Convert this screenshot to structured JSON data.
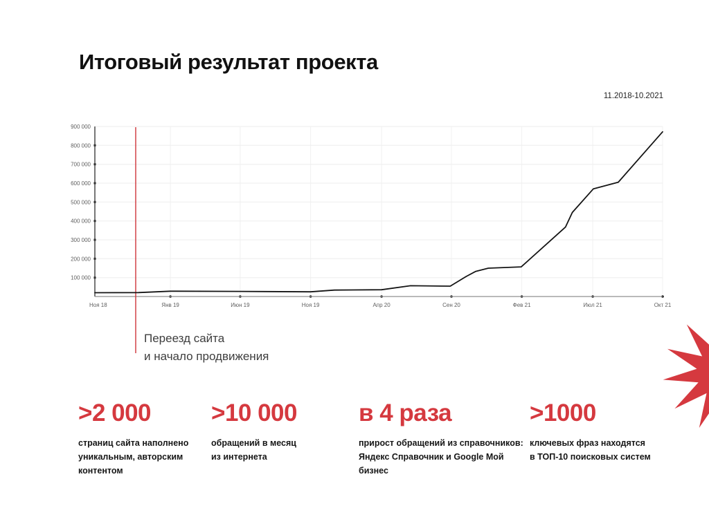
{
  "title": "Итоговый результат проекта",
  "period": "11.2018-10.2021",
  "accent_color": "#d5393f",
  "annotation": {
    "text": "Переезд сайта\nи начало продвижения",
    "marker_color": "#d0393e"
  },
  "chart_data": {
    "type": "line",
    "title": "Итоговый результат проекта",
    "xlabel": "",
    "ylabel": "",
    "ylim": [
      0,
      900000
    ],
    "grid": true,
    "legend": "none",
    "line_color": "#141414",
    "x_tick_labels": [
      "Ноя 18",
      "Янв 19",
      "Июн 19",
      "Ноя 19",
      "Апр 20",
      "Сен 20",
      "Фев 21",
      "Июл 21",
      "Окт 21"
    ],
    "x_tick_pos": [
      0,
      0.133,
      0.256,
      0.38,
      0.505,
      0.628,
      0.752,
      0.877,
      1.0
    ],
    "y_tick_values": [
      100000,
      200000,
      300000,
      400000,
      500000,
      600000,
      700000,
      800000,
      900000
    ],
    "y_tick_labels": [
      "100 000",
      "200 000",
      "300 000",
      "400 000",
      "500 000",
      "600 000",
      "700 000",
      "800 000",
      "900 000"
    ],
    "marker_x": 0.072,
    "points": [
      [
        0.0,
        20000
      ],
      [
        0.077,
        21000
      ],
      [
        0.133,
        28000
      ],
      [
        0.256,
        27000
      ],
      [
        0.38,
        25000
      ],
      [
        0.422,
        34000
      ],
      [
        0.505,
        36000
      ],
      [
        0.556,
        57000
      ],
      [
        0.626,
        55000
      ],
      [
        0.654,
        106000
      ],
      [
        0.671,
        133000
      ],
      [
        0.693,
        150000
      ],
      [
        0.751,
        157000
      ],
      [
        0.829,
        368000
      ],
      [
        0.841,
        445000
      ],
      [
        0.878,
        570000
      ],
      [
        0.922,
        605000
      ],
      [
        1.0,
        872000
      ]
    ]
  },
  "stats": [
    {
      "value": ">2 000",
      "description": "страниц сайта наполнено\nуникальным, авторским\nконтентом"
    },
    {
      "value": ">10 000",
      "description": "обращений в месяц\nиз интернета"
    },
    {
      "value": "в 4 раза",
      "description": "прирост обращений из справочников:\nЯндекс Справочник и Google Мой\nбизнес"
    },
    {
      "value": ">1000",
      "description": "ключевых фраз находятся\nв ТОП-10 поисковых систем"
    }
  ]
}
